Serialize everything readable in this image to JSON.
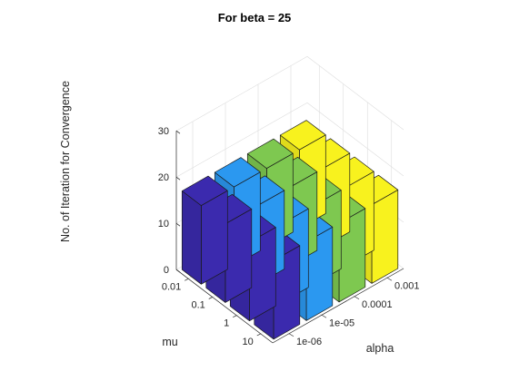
{
  "chart_data": {
    "type": "bar3d",
    "title": "For beta = 25",
    "xlabel": "mu",
    "ylabel": "alpha",
    "zlabel": "No. of Iteration for Convergence",
    "mu_categories": [
      "0.01",
      "0.1",
      "1",
      "10"
    ],
    "alpha_categories": [
      "1e-06",
      "1e-05",
      "0.0001",
      "0.001"
    ],
    "z_ticks": [
      "0",
      "10",
      "20",
      "30"
    ],
    "zlim": [
      0,
      30
    ],
    "grid": true,
    "values": [
      [
        17,
        17,
        17,
        17
      ],
      [
        17,
        17,
        17,
        17
      ],
      [
        17,
        17,
        17,
        17
      ],
      [
        17,
        17,
        17,
        17
      ]
    ],
    "colors": [
      "#3b2aae",
      "#2b98f0",
      "#7ec850",
      "#f8f21e"
    ]
  }
}
